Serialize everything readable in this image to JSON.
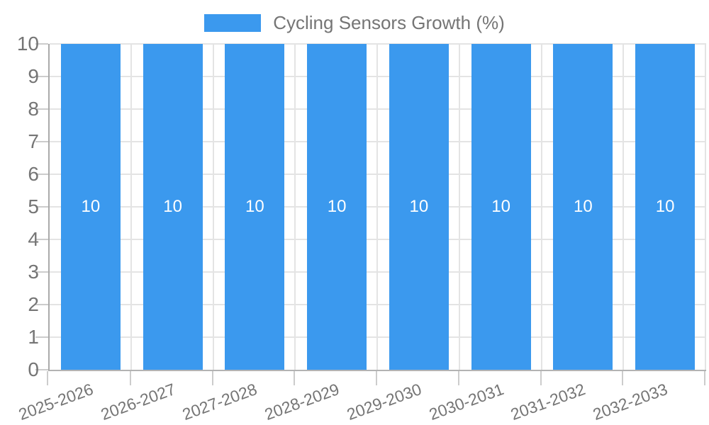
{
  "legend": {
    "label": "Cycling Sensors Growth (%)"
  },
  "colors": {
    "bar": "#3b99ee",
    "bar_label": "#ffffff",
    "axis_text": "#757575",
    "legend_text": "#757575",
    "gridline": "#e4e4e4",
    "axis_line": "#aaaaaa",
    "tick": "#cccccc"
  },
  "chart_data": {
    "type": "bar",
    "title": "Cycling Sensors Growth (%)",
    "categories": [
      "2025-2026",
      "2026-2027",
      "2027-2028",
      "2028-2029",
      "2029-2030",
      "2030-2031",
      "2031-2032",
      "2032-2033"
    ],
    "values": [
      10,
      10,
      10,
      10,
      10,
      10,
      10,
      10
    ],
    "bar_value_labels": [
      "10",
      "10",
      "10",
      "10",
      "10",
      "10",
      "10",
      "10"
    ],
    "xlabel": "",
    "ylabel": "",
    "ylim": [
      0,
      10
    ],
    "y_ticks": [
      0,
      1,
      2,
      3,
      4,
      5,
      6,
      7,
      8,
      9,
      10
    ],
    "y_tick_labels": [
      "0",
      "1",
      "2",
      "3",
      "4",
      "5",
      "6",
      "7",
      "8",
      "9",
      "10"
    ],
    "grid": true,
    "legend_position": "top",
    "bar_label_position": "middle"
  }
}
